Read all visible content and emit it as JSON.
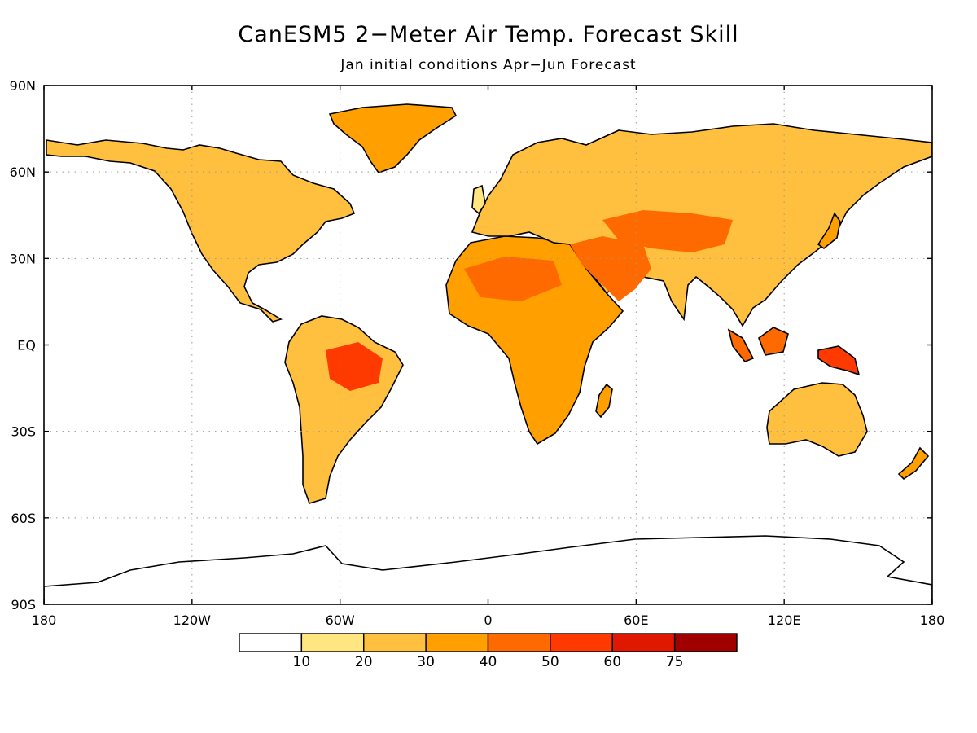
{
  "title": "CanESM5 2−Meter Air Temp. Forecast Skill",
  "subtitle": "Jan initial conditions  Apr−Jun Forecast",
  "axes": {
    "lat_ticks": [
      {
        "value": 90,
        "label": "90N"
      },
      {
        "value": 60,
        "label": "60N"
      },
      {
        "value": 30,
        "label": "30N"
      },
      {
        "value": 0,
        "label": "EQ"
      },
      {
        "value": -30,
        "label": "30S"
      },
      {
        "value": -60,
        "label": "60S"
      },
      {
        "value": -90,
        "label": "90S"
      }
    ],
    "lon_ticks": [
      {
        "value": -180,
        "label": "180"
      },
      {
        "value": -120,
        "label": "120W"
      },
      {
        "value": -60,
        "label": "60W"
      },
      {
        "value": 0,
        "label": "0"
      },
      {
        "value": 60,
        "label": "60E"
      },
      {
        "value": 120,
        "label": "120E"
      },
      {
        "value": 180,
        "label": "180"
      }
    ],
    "lon_range": [
      -180,
      180
    ],
    "lat_range": [
      -90,
      90
    ],
    "grid": "dotted"
  },
  "colorbar": {
    "boundaries": [
      "10",
      "20",
      "30",
      "40",
      "50",
      "60",
      "75"
    ],
    "colors": [
      "#ffffff",
      "#ffe680",
      "#ffc040",
      "#ffa000",
      "#ff6a00",
      "#ff3a00",
      "#e01800",
      "#a00000"
    ]
  },
  "colors": {
    "coast": "#000000",
    "grid": "#999999"
  }
}
